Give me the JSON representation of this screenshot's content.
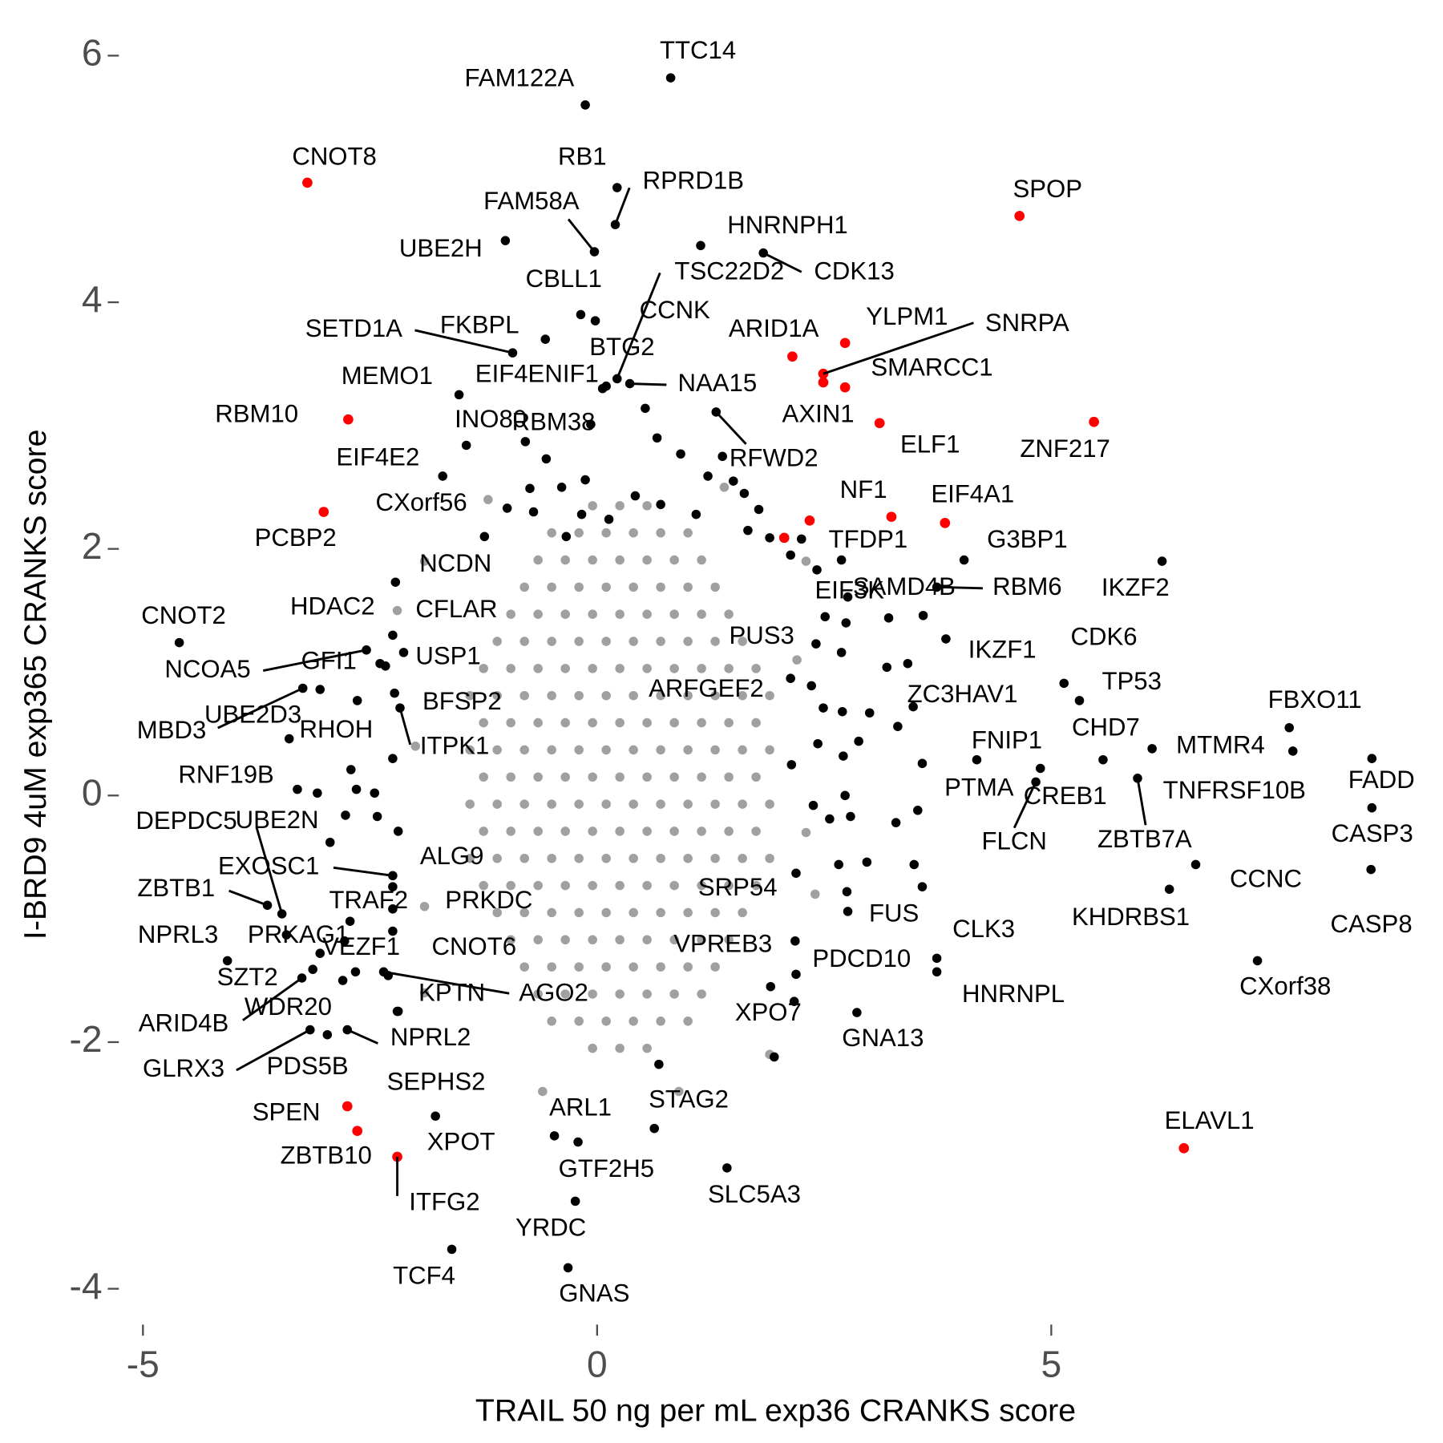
{
  "chart_data": {
    "type": "scatter",
    "x_label": "TRAIL 50 ng per mL exp36 CRANKS score",
    "y_label": "I-BRD9 4uM exp365 CRANKS score",
    "xlim": [
      -5.2,
      9.0
    ],
    "ylim": [
      -4.2,
      6.2
    ],
    "xticks": [
      -5,
      0,
      5
    ],
    "yticks": [
      -4,
      -2,
      0,
      2,
      4,
      6
    ],
    "series": [
      {
        "color": "#a0a0a0",
        "x": [
          -0.05,
          0.25,
          0.55,
          -0.5,
          -0.2,
          0.1,
          0.4,
          0.7,
          1.0,
          -0.65,
          -0.35,
          -0.05,
          0.25,
          0.55,
          0.85,
          1.15,
          -0.8,
          -0.5,
          -0.2,
          0.1,
          0.4,
          0.7,
          1.0,
          1.3,
          -0.95,
          -0.65,
          -0.35,
          -0.05,
          0.25,
          0.55,
          0.85,
          1.15,
          1.45,
          -1.1,
          -0.8,
          -0.5,
          -0.2,
          0.1,
          0.4,
          0.7,
          1.0,
          1.3,
          1.6,
          -1.25,
          -0.95,
          -0.65,
          -0.35,
          -0.05,
          0.25,
          0.55,
          0.85,
          1.15,
          1.45,
          1.75,
          -1.4,
          -1.1,
          -0.8,
          -0.5,
          -0.2,
          0.1,
          0.4,
          0.7,
          1.0,
          1.3,
          1.6,
          1.9,
          -1.25,
          -0.95,
          -0.65,
          -0.35,
          -0.05,
          0.25,
          0.55,
          0.85,
          1.15,
          1.45,
          1.75,
          -1.4,
          -1.1,
          -0.8,
          -0.5,
          -0.2,
          0.1,
          0.4,
          0.7,
          1.0,
          1.3,
          1.6,
          1.9,
          -1.25,
          -0.95,
          -0.65,
          -0.35,
          -0.05,
          0.25,
          0.55,
          0.85,
          1.15,
          1.45,
          1.75,
          -1.4,
          -1.1,
          -0.8,
          -0.5,
          -0.2,
          0.1,
          0.4,
          0.7,
          1.0,
          1.3,
          1.6,
          1.9,
          -1.25,
          -0.95,
          -0.65,
          -0.35,
          -0.05,
          0.25,
          0.55,
          0.85,
          1.15,
          1.45,
          1.75,
          -1.4,
          -1.1,
          -0.8,
          -0.5,
          -0.2,
          0.1,
          0.4,
          0.7,
          1.0,
          1.3,
          1.6,
          1.9,
          -1.25,
          -0.95,
          -0.65,
          -0.35,
          -0.05,
          0.25,
          0.55,
          0.85,
          1.15,
          1.45,
          1.75,
          -1.1,
          -0.8,
          -0.5,
          -0.2,
          0.1,
          0.4,
          0.7,
          1.0,
          1.3,
          1.6,
          -0.95,
          -0.65,
          -0.35,
          -0.05,
          0.25,
          0.55,
          0.85,
          1.15,
          1.45,
          -0.8,
          -0.5,
          -0.2,
          0.1,
          0.4,
          0.7,
          1.0,
          1.3,
          -0.65,
          -0.35,
          -0.05,
          0.25,
          0.55,
          0.85,
          1.15,
          -0.5,
          -0.2,
          0.1,
          0.4,
          0.7,
          1.0,
          -0.05,
          0.25,
          0.55,
          -1.9,
          -2.2,
          2.3,
          2.4,
          -1.9,
          1.9,
          -1.2,
          1.4,
          -0.6,
          0.9,
          2.2,
          -2.0,
          2.3,
          -1.9
        ],
        "y": [
          -2.05,
          -2.05,
          -2.05,
          -1.83,
          -1.83,
          -1.83,
          -1.83,
          -1.83,
          -1.83,
          -1.61,
          -1.61,
          -1.61,
          -1.61,
          -1.61,
          -1.61,
          -1.61,
          -1.39,
          -1.39,
          -1.39,
          -1.39,
          -1.39,
          -1.39,
          -1.39,
          -1.39,
          -1.17,
          -1.17,
          -1.17,
          -1.17,
          -1.17,
          -1.17,
          -1.17,
          -1.17,
          -1.17,
          -0.95,
          -0.95,
          -0.95,
          -0.95,
          -0.95,
          -0.95,
          -0.95,
          -0.95,
          -0.95,
          -0.95,
          -0.73,
          -0.73,
          -0.73,
          -0.73,
          -0.73,
          -0.73,
          -0.73,
          -0.73,
          -0.73,
          -0.73,
          -0.73,
          -0.51,
          -0.51,
          -0.51,
          -0.51,
          -0.51,
          -0.51,
          -0.51,
          -0.51,
          -0.51,
          -0.51,
          -0.51,
          -0.51,
          -0.29,
          -0.29,
          -0.29,
          -0.29,
          -0.29,
          -0.29,
          -0.29,
          -0.29,
          -0.29,
          -0.29,
          -0.29,
          -0.07,
          -0.07,
          -0.07,
          -0.07,
          -0.07,
          -0.07,
          -0.07,
          -0.07,
          -0.07,
          -0.07,
          -0.07,
          -0.07,
          0.15,
          0.15,
          0.15,
          0.15,
          0.15,
          0.15,
          0.15,
          0.15,
          0.15,
          0.15,
          0.15,
          0.37,
          0.37,
          0.37,
          0.37,
          0.37,
          0.37,
          0.37,
          0.37,
          0.37,
          0.37,
          0.37,
          0.37,
          0.59,
          0.59,
          0.59,
          0.59,
          0.59,
          0.59,
          0.59,
          0.59,
          0.59,
          0.59,
          0.59,
          0.81,
          0.81,
          0.81,
          0.81,
          0.81,
          0.81,
          0.81,
          0.81,
          0.81,
          0.81,
          0.81,
          0.81,
          1.03,
          1.03,
          1.03,
          1.03,
          1.03,
          1.03,
          1.03,
          1.03,
          1.03,
          1.03,
          1.03,
          1.25,
          1.25,
          1.25,
          1.25,
          1.25,
          1.25,
          1.25,
          1.25,
          1.25,
          1.25,
          1.47,
          1.47,
          1.47,
          1.47,
          1.47,
          1.47,
          1.47,
          1.47,
          1.47,
          1.69,
          1.69,
          1.69,
          1.69,
          1.69,
          1.69,
          1.69,
          1.69,
          1.91,
          1.91,
          1.91,
          1.91,
          1.91,
          1.91,
          1.91,
          2.13,
          2.13,
          2.13,
          2.13,
          2.13,
          2.13,
          2.35,
          2.35,
          2.35,
          1.9,
          1.5,
          1.9,
          -0.8,
          -1.6,
          -2.1,
          2.4,
          2.5,
          -2.4,
          -2.4,
          1.1,
          0.4,
          -0.3,
          -0.9
        ]
      },
      {
        "color": "#000000",
        "x": [
          0.53,
          0.66,
          0.92,
          1.38,
          1.5,
          1.22,
          1.78,
          1.66,
          1.9,
          2.13,
          2.42,
          2.69,
          2.51,
          2.74,
          3.21,
          2.69,
          3.19,
          3.42,
          2.36,
          2.49,
          2.7,
          3.0,
          3.31,
          2.88,
          2.43,
          2.71,
          2.14,
          2.38,
          2.73,
          2.56,
          2.79,
          3.29,
          3.53,
          2.66,
          2.97,
          3.49,
          3.58,
          2.75,
          -0.56,
          -0.74,
          -0.39,
          -0.13,
          -0.7,
          -0.99,
          -1.24,
          -0.17,
          0.42,
          0.7,
          1.09,
          1.62,
          0.13,
          -0.34,
          -2.25,
          -2.71,
          -2.65,
          -3.08,
          -2.77,
          -2.94,
          -2.45,
          -2.42,
          -2.19,
          -2.66,
          -2.78,
          -2.2,
          2.17,
          1.95,
          0.68
        ],
        "y": [
          3.14,
          2.9,
          2.77,
          2.75,
          2.55,
          2.59,
          2.32,
          2.15,
          2.09,
          1.95,
          1.83,
          1.91,
          1.45,
          1.4,
          1.44,
          1.16,
          1.04,
          1.07,
          0.89,
          0.71,
          0.68,
          0.67,
          0.56,
          0.44,
          0.42,
          0.32,
          0.25,
          -0.08,
          0.0,
          -0.19,
          -0.17,
          -0.22,
          -0.12,
          -0.56,
          -0.54,
          -0.56,
          -0.74,
          -0.78,
          2.73,
          2.49,
          2.5,
          2.56,
          2.3,
          2.33,
          2.1,
          2.28,
          2.43,
          2.36,
          2.28,
          2.45,
          2.24,
          2.1,
          0.3,
          0.21,
          0.05,
          0.02,
          -0.16,
          -0.38,
          0.02,
          -0.17,
          -0.29,
          -1.43,
          -1.18,
          -1.75,
          -1.67,
          -2.12,
          -2.18
        ]
      },
      {
        "color": "#000000",
        "labels": [
          "TTC14",
          "FAM122A",
          "RB1",
          "RPRD1B",
          "FAM58A",
          "UBE2H",
          "HNRNPH1",
          "CDK13",
          "TSC22D2",
          "CBLL1",
          "CCNK",
          "SETD1A",
          "FKBPL",
          "BTG2",
          "MEMO1",
          "EIF4ENIF1",
          "NAA15",
          "RBM38",
          "INO80",
          "RFWD2",
          "EIF4E2",
          "CXorf56",
          "NCDN",
          "HDAC2",
          "CFLAR",
          "CNOT2",
          "NCOA5",
          "GFI1",
          "USP1",
          "MBD3",
          "UBE2D3",
          "RHOH",
          "BFSP2",
          "ITPK1",
          "RNF19B",
          "DEPDC5",
          "UBE2N",
          "EXOSC1",
          "ALG9",
          "ZBTB1",
          "TRAF2",
          "PRKDC",
          "NPRL3",
          "PRKAG1",
          "VEZF1",
          "CNOT6",
          "SZT2",
          "ARID4B",
          "WDR20",
          "KPTN",
          "AGO2",
          "NPRL2",
          "GLRX3",
          "PDS5B",
          "SEPHS2",
          "XPOT",
          "ARL1",
          "STAG2",
          "GTF2H5",
          "SLC5A3",
          "YRDC",
          "TCF4",
          "GNAS",
          "SRP54",
          "FUS",
          "VPREB3",
          "PDCD10",
          "XPO7",
          "GNA13",
          "CLK3",
          "HNRNPL",
          "CXorf38",
          "KHDRBS1",
          "CCNC",
          "CASP8",
          "CASP3",
          "FADD",
          "FBXO11",
          "MTMR4",
          "CHD7",
          "TNFRSF10B",
          "ZBTB7A",
          "TP53",
          "CDK6",
          "IKZF2",
          "G3BP1",
          "RBM6",
          "SAMD4B",
          "EIF3K",
          "IKZF1",
          "PUS3",
          "ARFGEF2",
          "ZC3HAV1",
          "FNIP1",
          "CREB1",
          "PTMA",
          "FLCN",
          "TFDP1"
        ],
        "x": [
          0.81,
          -0.13,
          0.22,
          0.2,
          -0.03,
          -1.01,
          1.14,
          1.83,
          0.22,
          -0.18,
          -0.02,
          -0.93,
          -0.57,
          0.1,
          -1.52,
          0.06,
          0.36,
          -0.07,
          -0.79,
          1.31,
          -1.44,
          -1.7,
          -2.22,
          -2.25,
          -2.13,
          -4.6,
          -2.54,
          -2.39,
          -2.33,
          -3.24,
          -3.05,
          -2.64,
          -2.23,
          -2.17,
          -3.39,
          -3.3,
          -3.47,
          -2.25,
          -2.25,
          -3.63,
          -2.72,
          -2.25,
          -4.07,
          -3.42,
          -3.05,
          -2.25,
          -3.13,
          -3.25,
          -2.8,
          -2.3,
          -2.35,
          -2.75,
          -3.16,
          -2.97,
          -2.19,
          -1.78,
          -0.47,
          0.63,
          -0.21,
          1.43,
          -0.24,
          -1.6,
          -0.32,
          2.19,
          2.76,
          2.18,
          2.19,
          1.91,
          2.86,
          3.74,
          3.74,
          7.27,
          6.3,
          6.59,
          8.52,
          8.53,
          8.53,
          7.62,
          7.66,
          6.11,
          5.57,
          5.95,
          5.31,
          5.14,
          6.22,
          4.04,
          3.74,
          3.59,
          2.76,
          3.84,
          2.41,
          2.13,
          3.48,
          4.18,
          4.88,
          3.58,
          4.83,
          2.25
        ],
        "y": [
          5.82,
          5.6,
          4.93,
          4.63,
          4.41,
          4.5,
          4.46,
          4.4,
          3.38,
          3.9,
          3.85,
          3.59,
          3.7,
          3.32,
          3.25,
          3.3,
          3.34,
          3.01,
          2.87,
          3.11,
          2.84,
          2.59,
          1.73,
          1.3,
          1.16,
          1.24,
          1.18,
          1.07,
          1.05,
          0.87,
          0.86,
          0.77,
          0.83,
          0.71,
          0.46,
          0.05,
          -0.96,
          -0.65,
          -0.74,
          -0.89,
          -1.02,
          -0.92,
          -1.34,
          -1.13,
          -1.28,
          -1.1,
          -1.41,
          -1.48,
          -1.5,
          -1.46,
          -1.43,
          -1.9,
          -1.9,
          -1.94,
          -1.75,
          -2.6,
          -2.76,
          -2.7,
          -2.81,
          -3.02,
          -3.29,
          -3.68,
          -3.83,
          -0.63,
          -0.94,
          -1.18,
          -1.45,
          -1.55,
          -1.76,
          -1.32,
          -1.43,
          -1.34,
          -0.76,
          -0.56,
          -0.6,
          -0.1,
          0.3,
          0.55,
          0.36,
          0.38,
          0.29,
          0.14,
          0.77,
          0.91,
          1.9,
          1.91,
          1.69,
          1.46,
          1.61,
          1.27,
          1.23,
          0.95,
          0.72,
          0.29,
          0.22,
          0.26,
          0.11,
          2.08
        ]
      },
      {
        "color": "#ff0000",
        "labels": [
          "CNOT8",
          "SPOP",
          "ARID1A",
          "YLPM1",
          "SNRPA",
          "SMARCC1",
          "AXIN1",
          "ELF1",
          "ZNF217",
          "RBM10",
          "PCBP2",
          "NF1",
          "EIF4A1",
          "ELAVL1",
          "SPEN",
          "ZBTB10",
          "ITFG2"
        ],
        "x": [
          -3.19,
          4.65,
          2.15,
          2.73,
          2.49,
          2.73,
          2.49,
          3.11,
          5.47,
          -2.74,
          -3.01,
          3.24,
          3.83,
          6.46,
          -2.75,
          -2.64,
          -2.2
        ],
        "y": [
          4.97,
          4.7,
          3.56,
          3.67,
          3.42,
          3.31,
          3.35,
          3.02,
          3.03,
          3.05,
          2.3,
          2.26,
          2.21,
          -2.86,
          -2.52,
          -2.72,
          -2.93
        ]
      },
      {
        "color": "#ff0000",
        "x": [
          2.34,
          2.06
        ],
        "y": [
          2.23,
          2.09
        ]
      }
    ]
  }
}
